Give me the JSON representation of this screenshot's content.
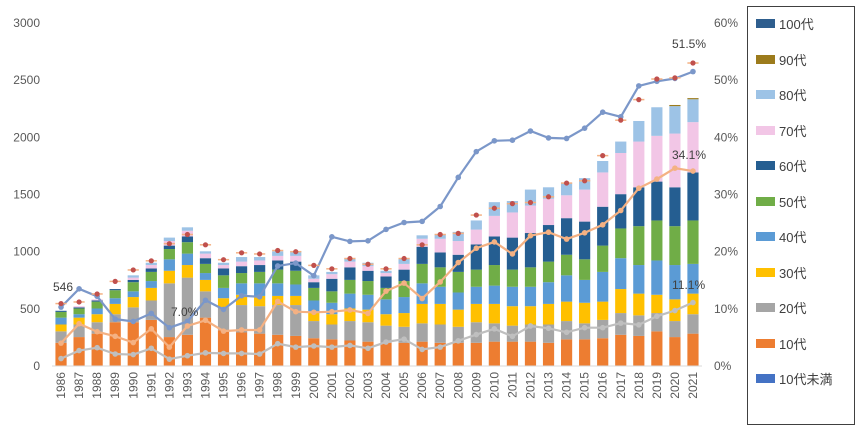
{
  "chart_data": {
    "type": "bar",
    "stacked": true,
    "categories": [
      "1986",
      "1987",
      "1988",
      "1989",
      "1990",
      "1991",
      "1992",
      "1993",
      "1994",
      "1995",
      "1996",
      "1997",
      "1998",
      "1999",
      "2000",
      "2001",
      "2002",
      "2003",
      "2004",
      "2005",
      "2006",
      "2007",
      "2008",
      "2009",
      "2010",
      "2011",
      "2012",
      "2013",
      "2014",
      "2015",
      "2016",
      "2017",
      "2018",
      "2019",
      "2020",
      "2021"
    ],
    "y_left_ticks": [
      "0",
      "500",
      "1000",
      "1500",
      "2000",
      "2500",
      "3000"
    ],
    "ylim_left": [
      0,
      3000
    ],
    "y_right_ticks": [
      "0%",
      "10%",
      "20%",
      "30%",
      "40%",
      "50%",
      "60%"
    ],
    "ylim_right": [
      0,
      60
    ],
    "grid": false,
    "legend_position": "right",
    "series": [
      {
        "name": "10代未満",
        "color": "#4472C4",
        "values": [
          3,
          3,
          3,
          3,
          3,
          3,
          3,
          3,
          3,
          3,
          3,
          3,
          3,
          3,
          3,
          3,
          3,
          3,
          3,
          3,
          3,
          3,
          3,
          3,
          3,
          3,
          3,
          3,
          3,
          3,
          3,
          3,
          3,
          3,
          3,
          3
        ]
      },
      {
        "name": "10代",
        "color": "#ED7D31",
        "values": [
          200,
          250,
          280,
          380,
          380,
          400,
          250,
          270,
          420,
          310,
          290,
          280,
          270,
          260,
          240,
          230,
          220,
          210,
          200,
          200,
          210,
          200,
          200,
          200,
          210,
          210,
          210,
          200,
          230,
          230,
          240,
          270,
          260,
          300,
          250,
          280
        ]
      },
      {
        "name": "20代",
        "color": "#A5A5A5",
        "values": [
          100,
          110,
          100,
          70,
          130,
          170,
          470,
          500,
          230,
          200,
          240,
          240,
          260,
          270,
          150,
          130,
          170,
          170,
          150,
          140,
          160,
          160,
          140,
          180,
          160,
          140,
          150,
          160,
          160,
          140,
          160,
          190,
          180,
          160,
          140,
          170
        ]
      },
      {
        "name": "30代",
        "color": "#FFC000",
        "values": [
          60,
          60,
          70,
          90,
          90,
          110,
          110,
          110,
          100,
          80,
          90,
          90,
          80,
          80,
          80,
          90,
          110,
          110,
          100,
          120,
          170,
          180,
          150,
          160,
          170,
          170,
          160,
          180,
          170,
          180,
          160,
          210,
          190,
          160,
          190,
          180
        ]
      },
      {
        "name": "40代",
        "color": "#5B9BD5",
        "values": [
          60,
          30,
          50,
          50,
          50,
          60,
          100,
          100,
          60,
          90,
          100,
          110,
          110,
          100,
          100,
          100,
          130,
          130,
          130,
          140,
          180,
          150,
          150,
          150,
          160,
          170,
          170,
          190,
          230,
          200,
          260,
          270,
          250,
          300,
          300,
          260
        ]
      },
      {
        "name": "50代",
        "color": "#70AD47",
        "values": [
          50,
          50,
          60,
          70,
          80,
          80,
          90,
          100,
          80,
          110,
          90,
          100,
          120,
          120,
          110,
          100,
          120,
          120,
          100,
          140,
          170,
          170,
          180,
          150,
          180,
          150,
          170,
          180,
          180,
          180,
          230,
          260,
          340,
          350,
          340,
          380
        ]
      },
      {
        "name": "60代",
        "color": "#255E91",
        "values": [
          10,
          10,
          10,
          10,
          20,
          30,
          30,
          50,
          50,
          60,
          60,
          60,
          80,
          80,
          50,
          110,
          110,
          90,
          100,
          100,
          150,
          130,
          150,
          220,
          250,
          280,
          300,
          320,
          320,
          330,
          340,
          300,
          340,
          340,
          340,
          420
        ]
      },
      {
        "name": "70代",
        "color": "#F2C6E6",
        "values": [
          0,
          10,
          10,
          0,
          20,
          30,
          40,
          50,
          40,
          30,
          40,
          40,
          40,
          50,
          30,
          40,
          50,
          40,
          30,
          50,
          70,
          120,
          120,
          130,
          180,
          220,
          240,
          230,
          200,
          280,
          300,
          360,
          400,
          400,
          470,
          440
        ]
      },
      {
        "name": "80代",
        "color": "#9DC3E6",
        "values": [
          0,
          0,
          0,
          0,
          20,
          20,
          30,
          30,
          20,
          20,
          40,
          30,
          40,
          40,
          30,
          20,
          30,
          30,
          20,
          50,
          30,
          40,
          80,
          80,
          120,
          100,
          140,
          100,
          110,
          100,
          100,
          100,
          180,
          250,
          240,
          200
        ]
      },
      {
        "name": "90代",
        "color": "#9C7B1C",
        "values": [
          0,
          0,
          0,
          0,
          0,
          0,
          0,
          0,
          0,
          0,
          0,
          0,
          0,
          0,
          0,
          0,
          0,
          0,
          0,
          0,
          0,
          0,
          0,
          0,
          0,
          0,
          0,
          0,
          0,
          0,
          0,
          0,
          0,
          0,
          10,
          10
        ]
      },
      {
        "name": "100代",
        "color": "#2E5E8E",
        "values": [
          0,
          0,
          0,
          0,
          0,
          0,
          0,
          0,
          0,
          0,
          0,
          0,
          0,
          0,
          0,
          0,
          0,
          0,
          0,
          0,
          0,
          0,
          0,
          0,
          0,
          0,
          0,
          0,
          0,
          0,
          0,
          0,
          0,
          0,
          0,
          0
        ]
      }
    ],
    "totals": {
      "color": "#C0504D",
      "values": [
        546,
        560,
        630,
        740,
        840,
        920,
        1070,
        1150,
        1060,
        930,
        990,
        980,
        1010,
        1000,
        880,
        850,
        940,
        890,
        850,
        940,
        1060,
        1150,
        1160,
        1320,
        1380,
        1420,
        1430,
        1480,
        1600,
        1620,
        1840,
        2150,
        2330,
        2510,
        2520,
        2650
      ]
    },
    "line_series": [
      {
        "axis": "right",
        "color": "#7B97C9",
        "values": [
          10.3,
          13.5,
          12.2,
          8.2,
          7.8,
          9.2,
          6.7,
          7.8,
          11.5,
          9.9,
          12.3,
          12.1,
          17.5,
          18.0,
          15.8,
          22.6,
          21.8,
          21.9,
          23.9,
          25.1,
          25.3,
          27.9,
          33.0,
          37.5,
          39.4,
          39.5,
          41.1,
          39.9,
          39.8,
          41.6,
          44.4,
          43.6,
          49.0,
          49.8,
          50.3,
          51.5
        ]
      },
      {
        "axis": "right",
        "color": "#F4B183",
        "values": [
          4.0,
          7.4,
          6.0,
          5.2,
          4.1,
          6.5,
          3.3,
          7.0,
          8.0,
          6.1,
          6.3,
          6.3,
          11.3,
          9.5,
          9.4,
          9.5,
          9.8,
          9.2,
          13.1,
          14.5,
          11.8,
          14.7,
          18.1,
          20.6,
          21.7,
          19.6,
          22.8,
          23.4,
          22.2,
          23.3,
          24.7,
          27.2,
          31.1,
          32.7,
          34.6,
          34.1
        ]
      },
      {
        "axis": "right",
        "color": "#BFBFBF",
        "values": [
          1.3,
          2.7,
          3.2,
          2.1,
          2.0,
          3.1,
          1.2,
          1.8,
          2.3,
          2.2,
          2.2,
          2.1,
          3.9,
          3.3,
          3.5,
          3.3,
          3.6,
          3.1,
          4.2,
          4.7,
          2.9,
          3.3,
          4.4,
          5.5,
          6.5,
          5.2,
          7.0,
          6.6,
          5.9,
          6.7,
          6.7,
          7.5,
          7.2,
          8.7,
          9.7,
          11.1
        ]
      }
    ],
    "annotations": {
      "first_total": "546",
      "lbl_1993": "7.0%",
      "lbl_2021_a": "51.5%",
      "lbl_2021_b": "34.1%",
      "lbl_2021_c": "11.1%"
    }
  }
}
